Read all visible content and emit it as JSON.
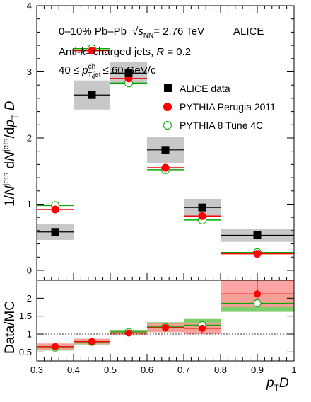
{
  "chart_data": [
    {
      "panel": "top",
      "type": "scatter",
      "ylabel": "1/N^{jets} dN^{jets}/dp_T D",
      "ylim": [
        -0.15,
        4.0
      ],
      "yticks": [
        "0",
        "1",
        "2",
        "3",
        "4"
      ],
      "annotations": {
        "line1": "0–10% Pb–Pb",
        "line1b": "= 2.76 TeV",
        "line1c": "ALICE",
        "line2": "charged jets,",
        "line3": "≤ 60 GeV/c"
      },
      "legend": {
        "placement": "top-right",
        "entries": [
          "ALICE data",
          "PYTHIA Perugia 2011",
          "PYTHIA 8 Tune 4C"
        ]
      },
      "bins": [
        {
          "lo": 0.3,
          "hi": 0.4,
          "x": 0.35,
          "data": 0.58,
          "sys": 0.12,
          "perugia": 0.92,
          "tune4c": 0.98
        },
        {
          "lo": 0.4,
          "hi": 0.5,
          "x": 0.45,
          "data": 2.65,
          "sys": 0.22,
          "perugia": 3.32,
          "tune4c": 3.35
        },
        {
          "lo": 0.5,
          "hi": 0.6,
          "x": 0.55,
          "data": 2.98,
          "sys": 0.17,
          "perugia": 2.9,
          "tune4c": 2.83
        },
        {
          "lo": 0.6,
          "hi": 0.7,
          "x": 0.65,
          "data": 1.82,
          "sys": 0.2,
          "perugia": 1.55,
          "tune4c": 1.52
        },
        {
          "lo": 0.7,
          "hi": 0.8,
          "x": 0.75,
          "data": 0.95,
          "sys": 0.13,
          "perugia": 0.82,
          "tune4c": 0.76
        },
        {
          "lo": 0.8,
          "hi": 1.0,
          "x": 0.9,
          "data": 0.53,
          "sys": 0.1,
          "perugia": 0.25,
          "tune4c": 0.27
        }
      ],
      "colors": {
        "data": "#000000",
        "perugia": "#ff0000",
        "tune4c": "#00aa00",
        "sys_band": "#c8c8c8"
      }
    },
    {
      "panel": "bottom",
      "type": "scatter",
      "ylabel": "Data/MC",
      "xlabel": "p_T D",
      "xlim": [
        0.3,
        1.0
      ],
      "ylim": [
        0.25,
        2.5
      ],
      "xticks": [
        "0.3",
        "0.4",
        "0.5",
        "0.6",
        "0.7",
        "0.8",
        "0.9",
        "1"
      ],
      "yticks": [
        "0.5",
        "1",
        "1.5",
        "2"
      ],
      "reference_line": 1,
      "bins": [
        {
          "lo": 0.3,
          "hi": 0.4,
          "x": 0.35,
          "perugia": 0.65,
          "p_lo": 0.56,
          "p_hi": 0.74,
          "tune4c": 0.62,
          "t_lo": 0.54,
          "t_hi": 0.7
        },
        {
          "lo": 0.4,
          "hi": 0.5,
          "x": 0.45,
          "perugia": 0.79,
          "p_lo": 0.72,
          "p_hi": 0.87,
          "tune4c": 0.78,
          "t_lo": 0.71,
          "t_hi": 0.86
        },
        {
          "lo": 0.5,
          "hi": 0.6,
          "x": 0.55,
          "perugia": 1.03,
          "p_lo": 0.97,
          "p_hi": 1.09,
          "tune4c": 1.06,
          "t_lo": 1.0,
          "t_hi": 1.12
        },
        {
          "lo": 0.6,
          "hi": 0.7,
          "x": 0.65,
          "perugia": 1.18,
          "p_lo": 1.05,
          "p_hi": 1.31,
          "tune4c": 1.2,
          "t_lo": 1.07,
          "t_hi": 1.33
        },
        {
          "lo": 0.7,
          "hi": 0.8,
          "x": 0.75,
          "perugia": 1.16,
          "p_lo": 1.0,
          "p_hi": 1.32,
          "tune4c": 1.25,
          "t_lo": 1.08,
          "t_hi": 1.42
        },
        {
          "lo": 0.8,
          "hi": 1.0,
          "x": 0.9,
          "perugia": 2.12,
          "p_lo": 1.75,
          "p_hi": 2.49,
          "tune4c": 1.86,
          "t_lo": 1.62,
          "t_hi": 2.1
        }
      ],
      "colors": {
        "perugia": "#ff0000",
        "tune4c": "#00aa00",
        "perugia_band": "#ff9a9a",
        "tune4c_band": "#7ccf6a"
      }
    }
  ]
}
